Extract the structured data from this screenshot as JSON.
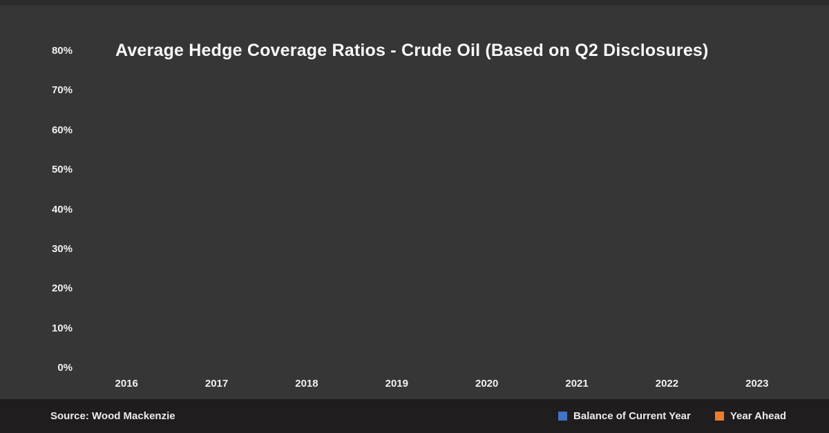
{
  "chart": {
    "title": "Average Hedge Coverage Ratios - Crude Oil (Based on Q2 Disclosures)",
    "y_ticks": [
      "80%",
      "70%",
      "60%",
      "50%",
      "40%",
      "30%",
      "20%",
      "10%",
      "0%"
    ],
    "x_ticks": [
      "2016",
      "2017",
      "2018",
      "2019",
      "2020",
      "2021",
      "2022",
      "2023"
    ]
  },
  "footer": {
    "source": "Source: Wood Mackenzie",
    "legend": [
      {
        "label": "Balance of Current Year",
        "color": "#4472C4"
      },
      {
        "label": "Year Ahead",
        "color": "#ED7D2B"
      }
    ]
  },
  "colors": {
    "background": "#363636",
    "footer_background": "#201D1E",
    "text": "#F5F4F4",
    "series_blue": "#4472C4",
    "series_orange": "#ED7D2B"
  },
  "chart_data": {
    "type": "bar",
    "title": "Average Hedge Coverage Ratios - Crude Oil (Based on Q2 Disclosures)",
    "categories": [
      "2016",
      "2017",
      "2018",
      "2019",
      "2020",
      "2021",
      "2022",
      "2023"
    ],
    "series": [
      {
        "name": "Balance of Current Year",
        "color": "#4472C4",
        "values": []
      },
      {
        "name": "Year Ahead",
        "color": "#ED7D2B",
        "values": []
      }
    ],
    "xlabel": "",
    "ylabel": "",
    "ylim": [
      0,
      80
    ],
    "y_tick_step": 10,
    "y_tick_format": "percent",
    "grid": false,
    "legend_position": "bottom",
    "bars_rendered": false,
    "source": "Source: Wood Mackenzie"
  }
}
